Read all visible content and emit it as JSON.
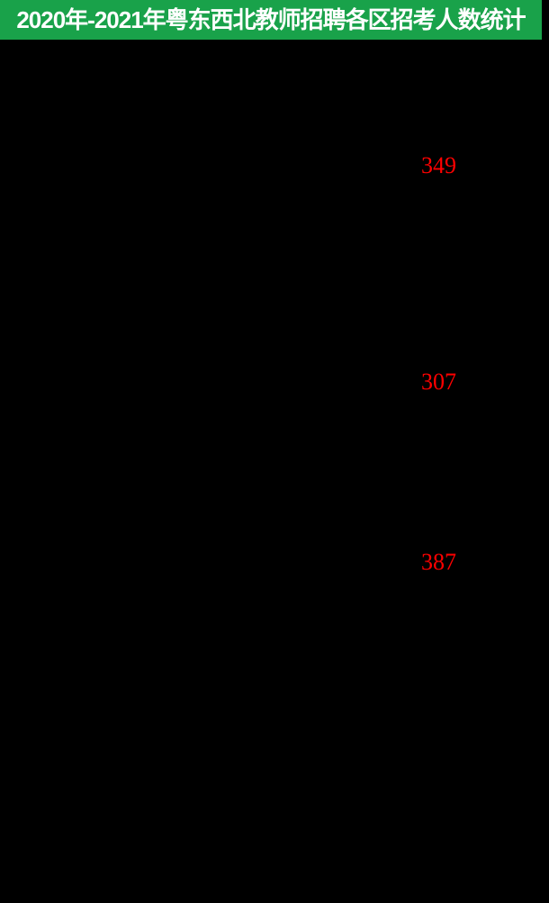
{
  "header": {
    "title": "2020年-2021年粤东西北教师招聘各区招考人数统计",
    "background_color": "#19A24A",
    "text_color": "#FFFFFF"
  },
  "chart_data": {
    "type": "bar",
    "title": "2020年-2021年粤东西北教师招聘各区招考人数统计",
    "values": [
      349,
      307,
      387
    ],
    "value_label_color": "#FF0000",
    "canvas_background": "#000000",
    "legend_position": "none",
    "grid": false
  }
}
